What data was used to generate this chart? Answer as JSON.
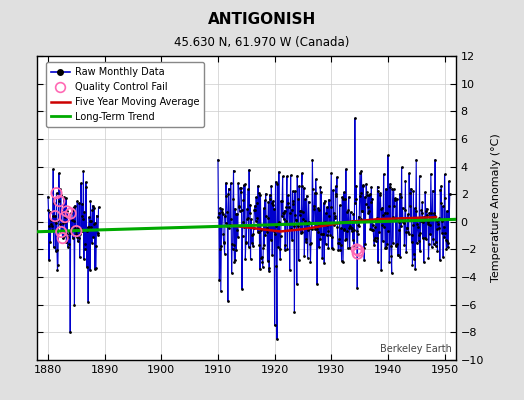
{
  "title": "ANTIGONISH",
  "subtitle": "45.630 N, 61.970 W (Canada)",
  "ylabel": "Temperature Anomaly (°C)",
  "watermark": "Berkeley Earth",
  "xlim": [
    1878,
    1952
  ],
  "ylim": [
    -10,
    12
  ],
  "yticks": [
    -10,
    -8,
    -6,
    -4,
    -2,
    0,
    2,
    4,
    6,
    8,
    10,
    12
  ],
  "xticks": [
    1880,
    1890,
    1900,
    1910,
    1920,
    1930,
    1940,
    1950
  ],
  "bg_color": "#e0e0e0",
  "plot_bg_color": "#ffffff",
  "grid_color": "#cccccc",
  "line_color": "#0000cc",
  "dot_color": "#000000",
  "qc_color": "#ff69b4",
  "ma_color": "#cc0000",
  "trend_color": "#00aa00",
  "legend_items": [
    {
      "label": "Raw Monthly Data"
    },
    {
      "label": "Quality Control Fail"
    },
    {
      "label": "Five Year Moving Average"
    },
    {
      "label": "Long-Term Trend"
    }
  ]
}
